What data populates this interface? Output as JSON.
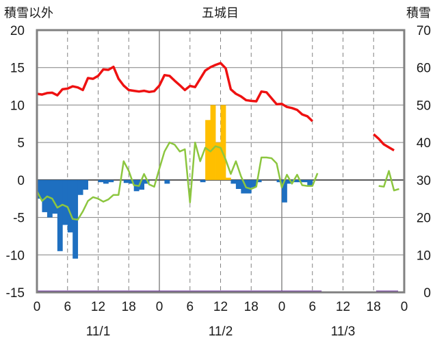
{
  "chart_data": {
    "type": "line",
    "title": "五城目",
    "ylabel_left": "積雪以外",
    "ylabel_right": "積雪",
    "ylim_left": [
      -15,
      20
    ],
    "ylim_right": [
      0,
      70
    ],
    "yticks_left": [
      "20",
      "15",
      "10",
      "5",
      "0",
      "-5",
      "-10",
      "-15"
    ],
    "yticks_right": [
      "70",
      "60",
      "50",
      "40",
      "30",
      "20",
      "10",
      "0"
    ],
    "x_hours_range": [
      0,
      72
    ],
    "x_tick_labels": [
      "0",
      "6",
      "12",
      "18",
      "0",
      "6",
      "12",
      "18",
      "0",
      "6",
      "12",
      "18",
      "0"
    ],
    "date_labels": [
      "11/1",
      "11/2",
      "11/3"
    ],
    "grid": "dashed vertical every 6 h, solid at day boundaries, horizontal at 5-unit steps",
    "colors": {
      "snow_depth": "#ee1111",
      "temperature": "#8cc63f",
      "precip_negative": "#1e6fc0",
      "precip_positive": "#ffbf00",
      "baseline": "#7030a0",
      "frame": "#808080"
    },
    "series": [
      {
        "name": "snow_depth",
        "axis": "right",
        "segments": [
          [
            [
              0,
              53.0
            ],
            [
              1,
              52.8
            ],
            [
              2,
              53.2
            ],
            [
              3,
              53.3
            ],
            [
              4,
              52.6
            ],
            [
              5,
              54.2
            ],
            [
              6,
              54.4
            ],
            [
              7,
              55.0
            ],
            [
              8,
              54.7
            ],
            [
              9,
              54.0
            ],
            [
              10,
              57.2
            ],
            [
              11,
              57.0
            ],
            [
              12,
              57.8
            ],
            [
              13,
              59.5
            ],
            [
              14,
              59.4
            ],
            [
              15,
              60.2
            ],
            [
              16,
              57.0
            ],
            [
              17,
              55.2
            ],
            [
              18,
              54.0
            ],
            [
              19,
              53.8
            ],
            [
              20,
              53.6
            ],
            [
              21,
              53.8
            ],
            [
              22,
              53.5
            ],
            [
              23,
              53.7
            ],
            [
              24,
              55.2
            ],
            [
              25,
              58.0
            ],
            [
              26,
              57.8
            ],
            [
              27,
              56.5
            ],
            [
              28,
              55.3
            ],
            [
              29,
              54.0
            ],
            [
              30,
              55.1
            ],
            [
              31,
              54.8
            ],
            [
              32,
              57.0
            ],
            [
              33,
              59.2
            ],
            [
              34,
              60.1
            ],
            [
              35,
              60.7
            ],
            [
              36,
              61.2
            ],
            [
              37,
              59.8
            ],
            [
              38,
              54.2
            ],
            [
              39,
              53.0
            ],
            [
              40,
              52.3
            ],
            [
              41,
              51.3
            ],
            [
              42,
              51.1
            ],
            [
              43,
              51.0
            ],
            [
              44,
              53.6
            ],
            [
              45,
              53.4
            ],
            [
              46,
              51.8
            ],
            [
              47,
              50.2
            ],
            [
              48,
              50.3
            ],
            [
              49,
              49.5
            ],
            [
              50,
              49.2
            ],
            [
              51,
              48.7
            ],
            [
              52,
              47.5
            ],
            [
              53,
              47.0
            ],
            [
              54,
              45.7
            ]
          ],
          [
            [
              66,
              42.2
            ],
            [
              67,
              41.0
            ],
            [
              68,
              39.5
            ],
            [
              69,
              38.7
            ],
            [
              70,
              37.9
            ]
          ]
        ]
      },
      {
        "name": "temperature",
        "axis": "left",
        "segments": [
          [
            [
              0,
              -1.5
            ],
            [
              1,
              -2.8
            ],
            [
              2,
              -2.2
            ],
            [
              3,
              -2.5
            ],
            [
              4,
              -3.7
            ],
            [
              5,
              -3.3
            ],
            [
              6,
              -3.6
            ],
            [
              7,
              -5.2
            ],
            [
              8,
              -5.3
            ],
            [
              9,
              -4.2
            ],
            [
              10,
              -2.8
            ],
            [
              11,
              -2.3
            ],
            [
              12,
              -2.5
            ],
            [
              13,
              -2.9
            ],
            [
              14,
              -2.6
            ],
            [
              15,
              -2.0
            ],
            [
              16,
              -2.0
            ],
            [
              17,
              2.5
            ],
            [
              18,
              1.2
            ],
            [
              19,
              -0.7
            ],
            [
              20,
              -0.8
            ],
            [
              21,
              0.8
            ],
            [
              22,
              -0.6
            ],
            [
              23,
              -0.9
            ],
            [
              24,
              1.5
            ],
            [
              25,
              3.8
            ],
            [
              26,
              5.0
            ],
            [
              27,
              4.7
            ],
            [
              28,
              3.8
            ],
            [
              29,
              4.1
            ],
            [
              30,
              -3.0
            ],
            [
              31,
              5.0
            ],
            [
              32,
              2.5
            ],
            [
              33,
              4.3
            ],
            [
              34,
              3.8
            ],
            [
              35,
              4.5
            ],
            [
              36,
              4.3
            ],
            [
              37,
              2.7
            ],
            [
              38,
              0.8
            ],
            [
              39,
              2.5
            ],
            [
              40,
              0.5
            ],
            [
              41,
              -1.0
            ],
            [
              42,
              -1.2
            ],
            [
              43,
              -0.9
            ],
            [
              44,
              3.0
            ],
            [
              45,
              3.0
            ],
            [
              46,
              2.9
            ],
            [
              47,
              2.2
            ],
            [
              48,
              -1.0
            ],
            [
              49,
              0.7
            ],
            [
              50,
              -0.5
            ],
            [
              51,
              0.7
            ],
            [
              52,
              -0.7
            ],
            [
              53,
              -0.8
            ],
            [
              54,
              -0.8
            ],
            [
              55,
              0.9
            ]
          ],
          [
            [
              67,
              -0.8
            ],
            [
              68,
              -0.9
            ],
            [
              69,
              1.2
            ],
            [
              70,
              -1.4
            ],
            [
              71,
              -1.2
            ]
          ]
        ]
      },
      {
        "name": "precipitation",
        "axis": "left",
        "bars": [
          [
            0,
            -2.5
          ],
          [
            1,
            -4.3
          ],
          [
            2,
            -5.0
          ],
          [
            3,
            -4.5
          ],
          [
            4,
            -9.5
          ],
          [
            5,
            -6.0
          ],
          [
            6,
            -7.0
          ],
          [
            7,
            -10.5
          ],
          [
            8,
            -2.0
          ],
          [
            9,
            -1.3
          ],
          [
            12,
            -0.3
          ],
          [
            13,
            -0.5
          ],
          [
            14,
            -0.3
          ],
          [
            17,
            -0.4
          ],
          [
            18,
            -0.5
          ],
          [
            19,
            -1.5
          ],
          [
            20,
            -1.3
          ],
          [
            21,
            -0.5
          ],
          [
            25,
            -0.5
          ],
          [
            32,
            -0.3
          ],
          [
            33,
            8.0
          ],
          [
            34,
            10.0
          ],
          [
            35,
            5.0
          ],
          [
            36,
            10.0
          ],
          [
            37,
            0.3
          ],
          [
            38,
            -0.5
          ],
          [
            39,
            -1.2
          ],
          [
            40,
            -1.8
          ],
          [
            41,
            -1.8
          ],
          [
            42,
            -1.0
          ],
          [
            43,
            -0.3
          ],
          [
            47,
            -0.3
          ],
          [
            48,
            -3.0
          ],
          [
            49,
            -0.5
          ],
          [
            50,
            -0.3
          ],
          [
            51,
            -0.3
          ],
          [
            52,
            -0.3
          ],
          [
            53,
            -0.8
          ]
        ]
      }
    ]
  }
}
